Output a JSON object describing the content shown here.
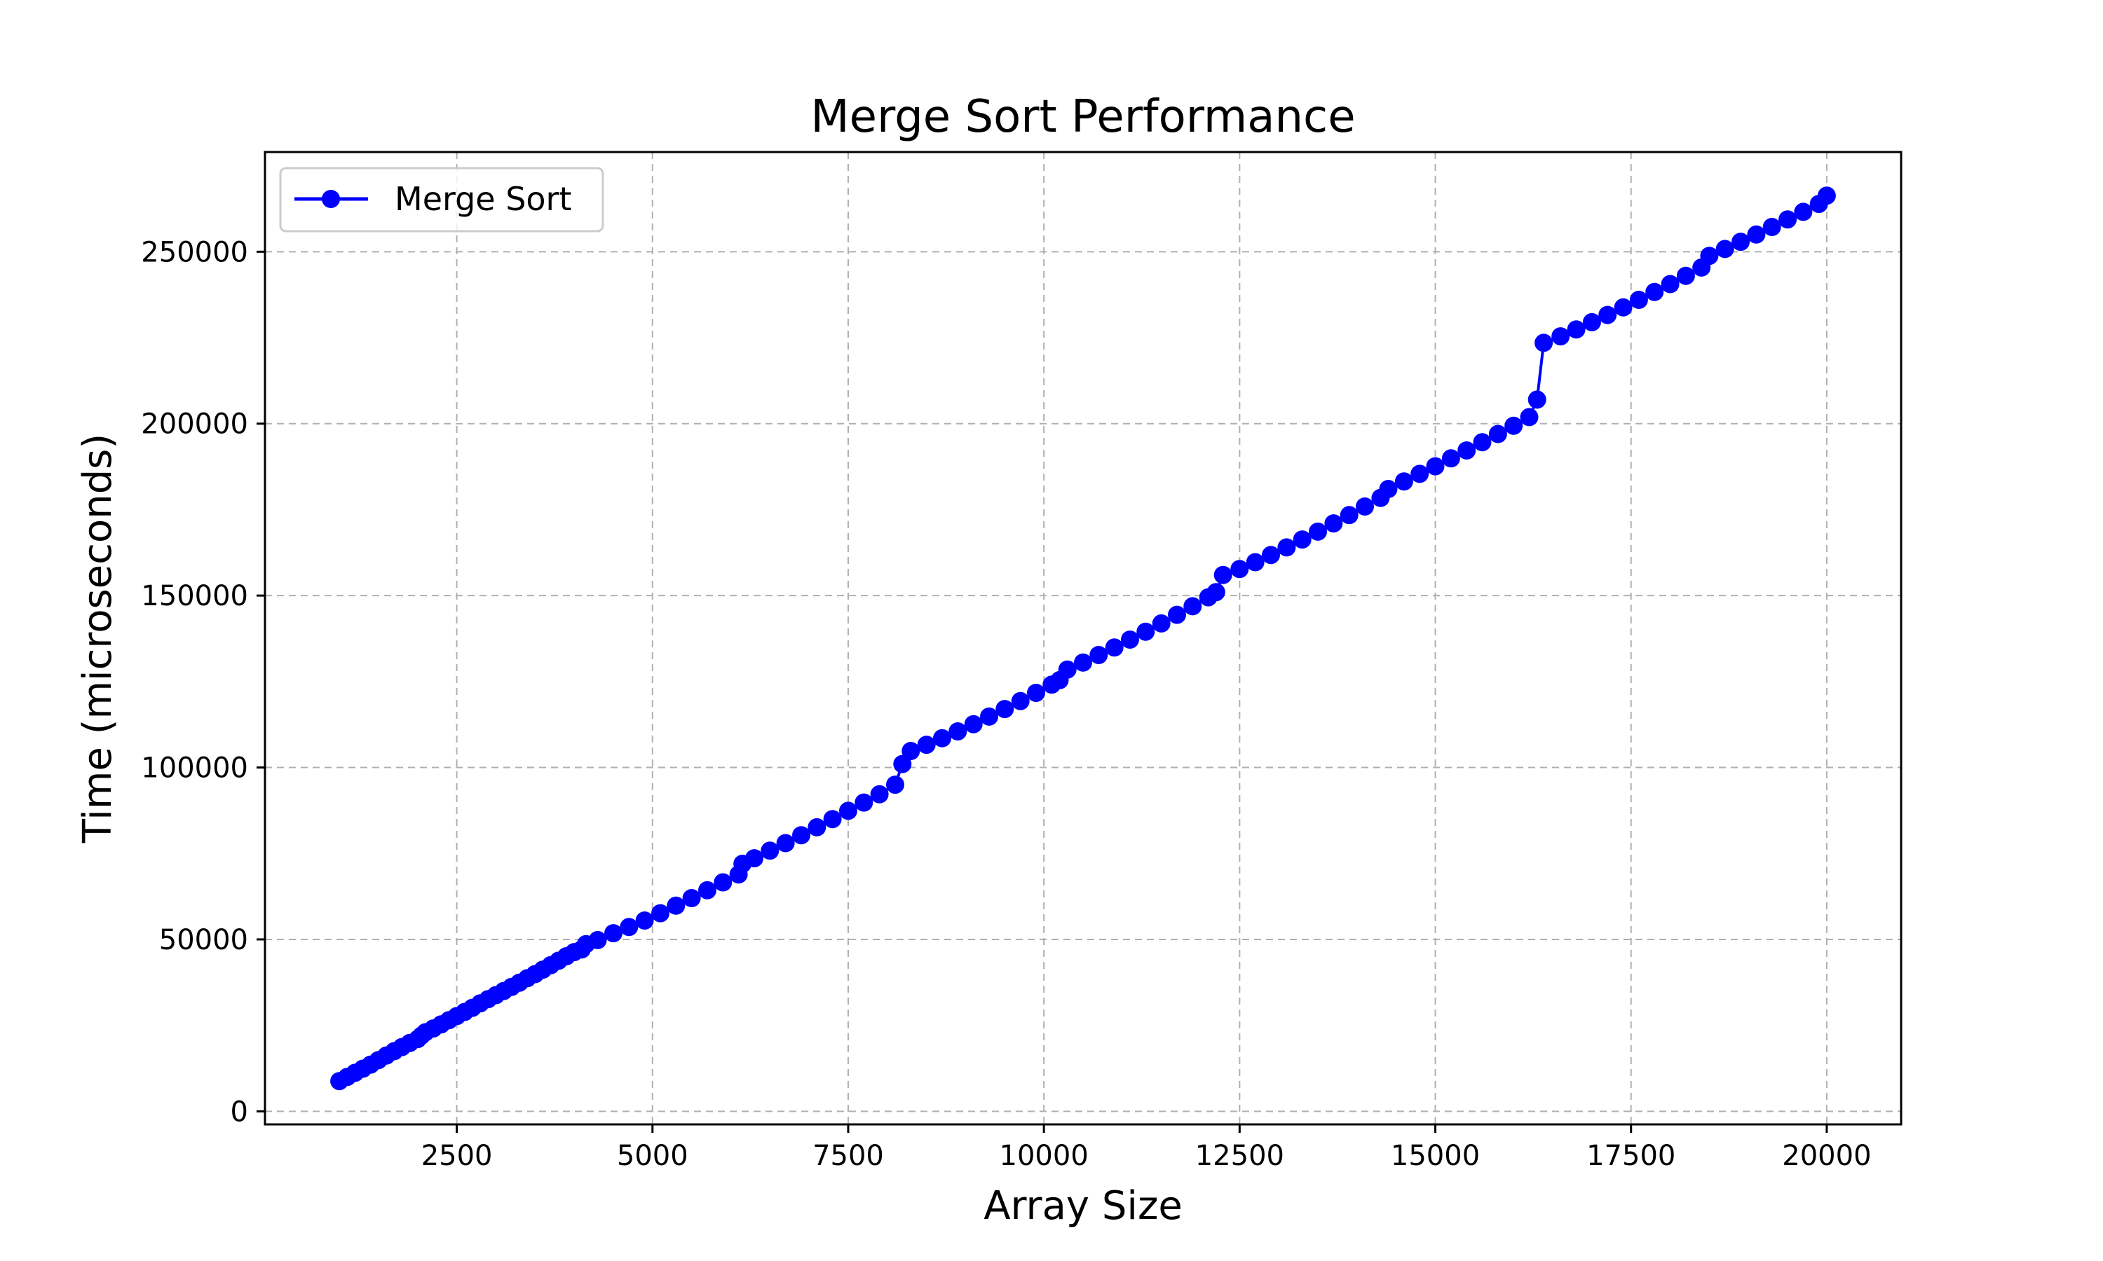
{
  "chart_data": {
    "type": "line",
    "title": "Merge Sort Performance",
    "xlabel": "Array Size",
    "ylabel": "Time (microseconds)",
    "xlim": [
      50,
      20950
    ],
    "ylim": [
      -3800,
      279000
    ],
    "x_ticks": [
      2500,
      5000,
      7500,
      10000,
      12500,
      15000,
      17500,
      20000
    ],
    "y_ticks": [
      0,
      50000,
      100000,
      150000,
      200000,
      250000
    ],
    "x_tick_labels": [
      "2500",
      "5000",
      "7500",
      "10000",
      "12500",
      "15000",
      "17500",
      "20000"
    ],
    "y_tick_labels": [
      "0",
      "50000",
      "100000",
      "150000",
      "200000",
      "250000"
    ],
    "grid": true,
    "legend_position": "top-left",
    "series": [
      {
        "name": "Merge Sort",
        "color": "#0000ff",
        "marker": "circle",
        "points": [
          [
            1000,
            8800
          ],
          [
            1100,
            10000
          ],
          [
            1200,
            11200
          ],
          [
            1300,
            12400
          ],
          [
            1400,
            13600
          ],
          [
            1500,
            14900
          ],
          [
            1600,
            16200
          ],
          [
            1700,
            17500
          ],
          [
            1800,
            18700
          ],
          [
            1900,
            19900
          ],
          [
            2000,
            21000
          ],
          [
            2048,
            22000
          ],
          [
            2100,
            23000
          ],
          [
            2200,
            24100
          ],
          [
            2300,
            25300
          ],
          [
            2400,
            26500
          ],
          [
            2500,
            27700
          ],
          [
            2600,
            28900
          ],
          [
            2700,
            30100
          ],
          [
            2800,
            31400
          ],
          [
            2900,
            32600
          ],
          [
            3000,
            33800
          ],
          [
            3100,
            35000
          ],
          [
            3200,
            36200
          ],
          [
            3300,
            37400
          ],
          [
            3400,
            38700
          ],
          [
            3500,
            39900
          ],
          [
            3600,
            41200
          ],
          [
            3700,
            42500
          ],
          [
            3800,
            43800
          ],
          [
            3900,
            45100
          ],
          [
            4000,
            46300
          ],
          [
            4096,
            47100
          ],
          [
            4150,
            48600
          ],
          [
            4300,
            49800
          ],
          [
            4500,
            51800
          ],
          [
            4700,
            53600
          ],
          [
            4900,
            55500
          ],
          [
            5100,
            57600
          ],
          [
            5300,
            59800
          ],
          [
            5500,
            62000
          ],
          [
            5700,
            64300
          ],
          [
            5900,
            66600
          ],
          [
            6100,
            68900
          ],
          [
            6150,
            72000
          ],
          [
            6300,
            73600
          ],
          [
            6500,
            75800
          ],
          [
            6700,
            78000
          ],
          [
            6900,
            80300
          ],
          [
            7100,
            82600
          ],
          [
            7300,
            85000
          ],
          [
            7500,
            87400
          ],
          [
            7700,
            89800
          ],
          [
            7900,
            92200
          ],
          [
            8100,
            95000
          ],
          [
            8192,
            101000
          ],
          [
            8300,
            104800
          ],
          [
            8500,
            106600
          ],
          [
            8700,
            108500
          ],
          [
            8900,
            110500
          ],
          [
            9100,
            112600
          ],
          [
            9300,
            114800
          ],
          [
            9500,
            117000
          ],
          [
            9700,
            119300
          ],
          [
            9900,
            121700
          ],
          [
            10100,
            124100
          ],
          [
            10200,
            125400
          ],
          [
            10300,
            128500
          ],
          [
            10500,
            130500
          ],
          [
            10700,
            132700
          ],
          [
            10900,
            134900
          ],
          [
            11100,
            137200
          ],
          [
            11300,
            139500
          ],
          [
            11500,
            141900
          ],
          [
            11700,
            144400
          ],
          [
            11900,
            146900
          ],
          [
            12100,
            149500
          ],
          [
            12200,
            151000
          ],
          [
            12288,
            156000
          ],
          [
            12500,
            157700
          ],
          [
            12700,
            159700
          ],
          [
            12900,
            161800
          ],
          [
            13100,
            164000
          ],
          [
            13300,
            166300
          ],
          [
            13500,
            168600
          ],
          [
            13700,
            171000
          ],
          [
            13900,
            173400
          ],
          [
            14100,
            175900
          ],
          [
            14300,
            178400
          ],
          [
            14400,
            181000
          ],
          [
            14600,
            183200
          ],
          [
            14800,
            185400
          ],
          [
            15000,
            187600
          ],
          [
            15200,
            189900
          ],
          [
            15400,
            192200
          ],
          [
            15600,
            194600
          ],
          [
            15800,
            197000
          ],
          [
            16000,
            199400
          ],
          [
            16200,
            201900
          ],
          [
            16300,
            207000
          ],
          [
            16384,
            223500
          ],
          [
            16600,
            225400
          ],
          [
            16800,
            227400
          ],
          [
            17000,
            229500
          ],
          [
            17200,
            231600
          ],
          [
            17400,
            233800
          ],
          [
            17600,
            236000
          ],
          [
            17800,
            238300
          ],
          [
            18000,
            240600
          ],
          [
            18200,
            243000
          ],
          [
            18400,
            245400
          ],
          [
            18500,
            248800
          ],
          [
            18700,
            250800
          ],
          [
            18900,
            252900
          ],
          [
            19100,
            255000
          ],
          [
            19300,
            257200
          ],
          [
            19500,
            259400
          ],
          [
            19700,
            261600
          ],
          [
            19900,
            263900
          ],
          [
            20000,
            266300
          ]
        ]
      }
    ]
  }
}
